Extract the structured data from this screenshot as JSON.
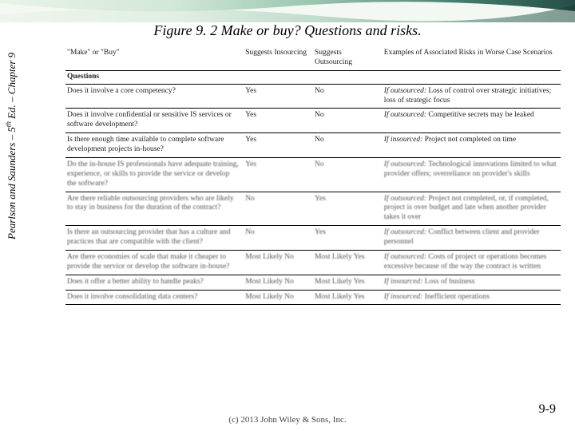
{
  "banner": {
    "height": 28,
    "colors": [
      "#e9f2e6",
      "#cfe6d6",
      "#8fbfa8",
      "#2f6f5f",
      "#0f3a33"
    ]
  },
  "title": "Figure 9. 2  Make or buy? Questions and risks.",
  "sidebar": "Pearlson and Saunders – 5th Ed. – Chapter 9",
  "copyright": "(c) 2013 John Wiley & Sons, Inc.",
  "pagenum": "9-9",
  "table": {
    "font_size": 9.5,
    "columns": [
      {
        "label": "\"Make\" or \"Buy\"",
        "width_pct": 36
      },
      {
        "label": "Suggests Insourcing",
        "width_pct": 14
      },
      {
        "label": "Suggests Outsourcing",
        "width_pct": 14
      },
      {
        "label": "Examples of Associated Risks in Worse Case Scenarios",
        "width_pct": 36
      }
    ],
    "section_label": "Questions",
    "rows": [
      {
        "q": "Does it involve a core competency?",
        "ins": "Yes",
        "out": "No",
        "risk_lead": "If outsourced:",
        "risk": " Loss of control over strategic initiatives; loss of strategic focus"
      },
      {
        "q": "Does it involve confidential or sensitive IS services or software development?",
        "ins": "Yes",
        "out": "No",
        "risk_lead": "If outsourced:",
        "risk": " Competitive secrets may be leaked"
      },
      {
        "q": "Is there enough time available to complete software development projects in-house?",
        "ins": "Yes",
        "out": "No",
        "risk_lead": "If insourced:",
        "risk": " Project not completed on time"
      },
      {
        "q": "Do the in-house IS professionals have adequate training, experience, or skills to provide the service or develop the software?",
        "ins": "Yes",
        "out": "No",
        "risk_lead": "If outsourced:",
        "risk": " Technological innovations limited to what provider offers; overreliance on provider's skills"
      },
      {
        "q": "Are there reliable outsourcing providers who are likely to stay in business for the duration of the contract?",
        "ins": "No",
        "out": "Yes",
        "risk_lead": "If outsourced:",
        "risk": " Project not completed, or, if completed, project is over budget and late when another provider takes it over"
      },
      {
        "q": "Is there an outsourcing provider that has a culture and practices that are compatible with the client?",
        "ins": "No",
        "out": "Yes",
        "risk_lead": "If outsourced:",
        "risk": " Conflict between client and provider personnel"
      },
      {
        "q": "Are there economies of scale that make it cheaper to provide the service or develop the software in-house?",
        "ins": "Most Likely No",
        "out": "Most Likely Yes",
        "risk_lead": "If outsourced:",
        "risk": " Costs of project or operations becomes excessive because of the way the contract is written"
      },
      {
        "q": "Does it offer a better ability to handle peaks?",
        "ins": "Most Likely No",
        "out": "Most Likely Yes",
        "risk_lead": "If insourced:",
        "risk": " Loss of business"
      },
      {
        "q": "Does it involve consolidating data centers?",
        "ins": "Most Likely No",
        "out": "Most Likely Yes",
        "risk_lead": "If insourced:",
        "risk": " Inefficient operations"
      }
    ]
  }
}
